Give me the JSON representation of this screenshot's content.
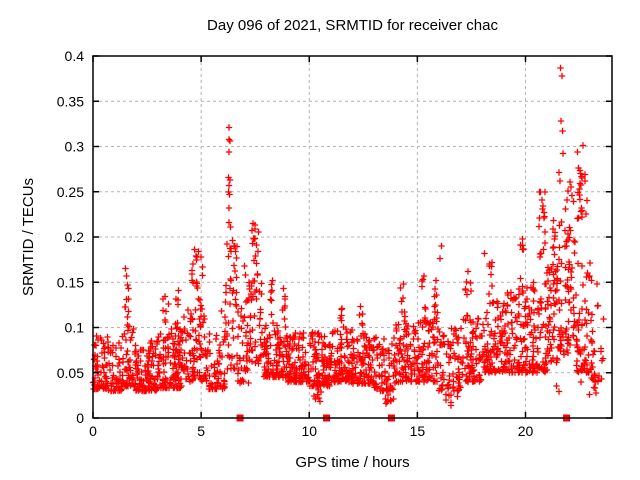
{
  "page": {
    "background": "#ffffff",
    "foreground": "#000000"
  },
  "chart_data": {
    "type": "scatter",
    "title": "Day 096 of 2021, SRMTID for receiver chac",
    "xlabel": "GPS time / hours",
    "ylabel": "SRMTID / TECUs",
    "xlim": [
      0,
      24
    ],
    "ylim": [
      0,
      0.4
    ],
    "xticks": {
      "values": [
        0,
        5,
        10,
        15,
        20
      ],
      "labels": [
        "0",
        "5",
        "10",
        "15",
        "20"
      ]
    },
    "yticks": {
      "values": [
        0,
        0.05,
        0.1,
        0.15,
        0.2,
        0.25,
        0.3,
        0.35,
        0.4
      ],
      "labels": [
        "0",
        "0.05",
        "0.1",
        "0.15",
        "0.2",
        "0.25",
        "0.3",
        "0.35",
        "0.4"
      ]
    },
    "grid": {
      "show": true,
      "color": "#b4b4b4",
      "dash": "3,3"
    },
    "legend": "none",
    "marker_color": "#ff0000",
    "seed": 20210961,
    "series": [
      {
        "name": "srmtid",
        "marker": "plus",
        "clusters_format": [
          "x_start",
          "x_end",
          "count",
          "y_min",
          "y_max",
          "skew_toward_min"
        ],
        "clusters": [
          [
            0.0,
            0.7,
            55,
            0.032,
            0.095,
            1.8
          ],
          [
            0.05,
            0.3,
            10,
            0.05,
            0.09,
            1.2
          ],
          [
            0.7,
            1.35,
            45,
            0.03,
            0.085,
            1.8
          ],
          [
            1.35,
            1.9,
            45,
            0.035,
            0.12,
            1.9
          ],
          [
            1.45,
            1.65,
            8,
            0.085,
            0.155,
            1.0
          ],
          [
            1.9,
            3.0,
            115,
            0.03,
            0.085,
            1.9
          ],
          [
            3.0,
            4.2,
            115,
            0.033,
            0.1,
            2.0
          ],
          [
            3.2,
            3.5,
            8,
            0.08,
            0.135,
            1.0
          ],
          [
            3.8,
            4.1,
            8,
            0.08,
            0.14,
            1.0
          ],
          [
            4.2,
            5.3,
            85,
            0.04,
            0.12,
            1.8
          ],
          [
            4.5,
            4.9,
            14,
            0.1,
            0.185,
            1.0
          ],
          [
            4.95,
            5.15,
            8,
            0.1,
            0.175,
            1.0
          ],
          [
            5.3,
            6.1,
            55,
            0.032,
            0.095,
            1.8
          ],
          [
            6.1,
            6.7,
            45,
            0.05,
            0.2,
            1.4
          ],
          [
            6.7,
            7.2,
            40,
            0.035,
            0.13,
            1.6
          ],
          [
            7.2,
            7.9,
            50,
            0.06,
            0.16,
            1.5
          ],
          [
            7.35,
            7.65,
            12,
            0.13,
            0.215,
            1.0
          ],
          [
            7.9,
            9.0,
            105,
            0.045,
            0.105,
            1.8
          ],
          [
            8.2,
            8.4,
            6,
            0.09,
            0.15,
            1.0
          ],
          [
            8.7,
            8.9,
            6,
            0.09,
            0.14,
            1.0
          ],
          [
            9.0,
            10.0,
            100,
            0.04,
            0.095,
            1.9
          ],
          [
            10.0,
            11.0,
            100,
            0.035,
            0.095,
            1.9
          ],
          [
            10.2,
            10.6,
            5,
            0.018,
            0.035,
            1.0
          ],
          [
            11.0,
            12.0,
            100,
            0.04,
            0.1,
            1.9
          ],
          [
            11.4,
            11.6,
            6,
            0.09,
            0.125,
            1.0
          ],
          [
            12.0,
            13.0,
            95,
            0.038,
            0.095,
            1.9
          ],
          [
            12.3,
            12.5,
            6,
            0.09,
            0.125,
            1.0
          ],
          [
            13.0,
            14.0,
            75,
            0.03,
            0.09,
            1.8
          ],
          [
            13.4,
            13.9,
            6,
            0.015,
            0.032,
            1.0
          ],
          [
            14.0,
            15.0,
            85,
            0.04,
            0.105,
            1.8
          ],
          [
            14.2,
            14.45,
            8,
            0.09,
            0.145,
            1.0
          ],
          [
            15.0,
            16.0,
            80,
            0.04,
            0.11,
            1.8
          ],
          [
            15.2,
            15.4,
            8,
            0.1,
            0.155,
            1.0
          ],
          [
            15.7,
            15.95,
            8,
            0.1,
            0.15,
            1.0
          ],
          [
            16.0,
            17.0,
            70,
            0.03,
            0.1,
            1.8
          ],
          [
            16.3,
            16.9,
            6,
            0.013,
            0.03,
            1.0
          ],
          [
            17.0,
            18.0,
            80,
            0.04,
            0.115,
            1.7
          ],
          [
            17.2,
            17.5,
            8,
            0.1,
            0.16,
            1.0
          ],
          [
            18.0,
            19.0,
            85,
            0.05,
            0.13,
            1.7
          ],
          [
            18.3,
            18.6,
            8,
            0.11,
            0.17,
            1.0
          ],
          [
            19.0,
            20.0,
            90,
            0.05,
            0.14,
            1.6
          ],
          [
            19.7,
            19.95,
            10,
            0.12,
            0.2,
            1.0
          ],
          [
            20.0,
            21.0,
            95,
            0.05,
            0.15,
            1.5
          ],
          [
            20.6,
            20.95,
            12,
            0.16,
            0.25,
            1.0
          ],
          [
            21.0,
            21.5,
            50,
            0.06,
            0.17,
            1.4
          ],
          [
            21.25,
            21.45,
            8,
            0.15,
            0.22,
            1.0
          ],
          [
            21.5,
            22.3,
            75,
            0.07,
            0.23,
            1.4
          ],
          [
            22.3,
            23.0,
            60,
            0.05,
            0.18,
            1.5
          ],
          [
            22.4,
            22.85,
            12,
            0.21,
            0.28,
            1.0
          ],
          [
            23.0,
            23.6,
            32,
            0.04,
            0.13,
            1.5
          ],
          [
            21.4,
            23.3,
            8,
            0.02,
            0.045,
            1.0
          ]
        ],
        "outliers": [
          [
            1.5,
            0.165
          ],
          [
            1.56,
            0.157
          ],
          [
            3.33,
            0.134
          ],
          [
            3.95,
            0.141
          ],
          [
            4.62,
            0.17
          ],
          [
            4.7,
            0.186
          ],
          [
            4.76,
            0.179
          ],
          [
            5.0,
            0.178
          ],
          [
            5.06,
            0.167
          ],
          [
            5.95,
            0.118
          ],
          [
            6.28,
            0.321
          ],
          [
            6.3,
            0.308
          ],
          [
            6.34,
            0.306
          ],
          [
            6.3,
            0.294
          ],
          [
            6.27,
            0.266
          ],
          [
            6.33,
            0.263
          ],
          [
            6.3,
            0.257
          ],
          [
            6.27,
            0.25
          ],
          [
            6.32,
            0.247
          ],
          [
            6.3,
            0.232
          ],
          [
            6.28,
            0.216
          ],
          [
            6.36,
            0.211
          ],
          [
            6.45,
            0.196
          ],
          [
            6.52,
            0.19
          ],
          [
            6.58,
            0.184
          ],
          [
            6.63,
            0.177
          ],
          [
            7.0,
            0.168
          ],
          [
            7.06,
            0.158
          ],
          [
            7.4,
            0.215
          ],
          [
            7.48,
            0.209
          ],
          [
            7.44,
            0.198
          ],
          [
            7.55,
            0.191
          ],
          [
            7.62,
            0.184
          ],
          [
            8.3,
            0.152
          ],
          [
            8.8,
            0.143
          ],
          [
            10.45,
            0.022
          ],
          [
            10.5,
            0.018
          ],
          [
            13.55,
            0.016
          ],
          [
            13.75,
            0.02
          ],
          [
            14.35,
            0.148
          ],
          [
            15.3,
            0.157
          ],
          [
            15.85,
            0.152
          ],
          [
            16.05,
            0.176
          ],
          [
            16.12,
            0.19
          ],
          [
            16.55,
            0.014
          ],
          [
            17.35,
            0.162
          ],
          [
            18.1,
            0.182
          ],
          [
            18.45,
            0.172
          ],
          [
            19.85,
            0.198
          ],
          [
            19.9,
            0.187
          ],
          [
            20.7,
            0.25
          ],
          [
            20.76,
            0.241
          ],
          [
            20.82,
            0.234
          ],
          [
            20.86,
            0.227
          ],
          [
            20.64,
            0.221
          ],
          [
            21.3,
            0.218
          ],
          [
            21.36,
            0.205
          ],
          [
            21.62,
            0.387
          ],
          [
            21.68,
            0.378
          ],
          [
            21.65,
            0.328
          ],
          [
            21.71,
            0.317
          ],
          [
            21.73,
            0.292
          ],
          [
            21.55,
            0.271
          ],
          [
            21.6,
            0.262
          ],
          [
            21.86,
            0.231
          ],
          [
            21.91,
            0.241
          ],
          [
            21.96,
            0.251
          ],
          [
            22.05,
            0.261
          ],
          [
            22.11,
            0.255
          ],
          [
            22.16,
            0.246
          ],
          [
            22.21,
            0.239
          ],
          [
            22.4,
            0.294
          ],
          [
            22.66,
            0.301
          ],
          [
            22.46,
            0.276
          ],
          [
            22.55,
            0.27
          ],
          [
            22.61,
            0.265
          ],
          [
            22.75,
            0.262
          ],
          [
            22.5,
            0.253
          ],
          [
            22.42,
            0.249
          ],
          [
            22.6,
            0.232
          ],
          [
            22.56,
            0.228
          ],
          [
            22.46,
            0.221
          ],
          [
            23.05,
            0.152
          ],
          [
            23.3,
            0.148
          ]
        ]
      },
      {
        "name": "zero-flags",
        "marker": "filled-square",
        "points": [
          [
            6.8,
            0
          ],
          [
            10.8,
            0
          ],
          [
            13.8,
            0
          ],
          [
            21.9,
            0
          ]
        ]
      }
    ]
  }
}
